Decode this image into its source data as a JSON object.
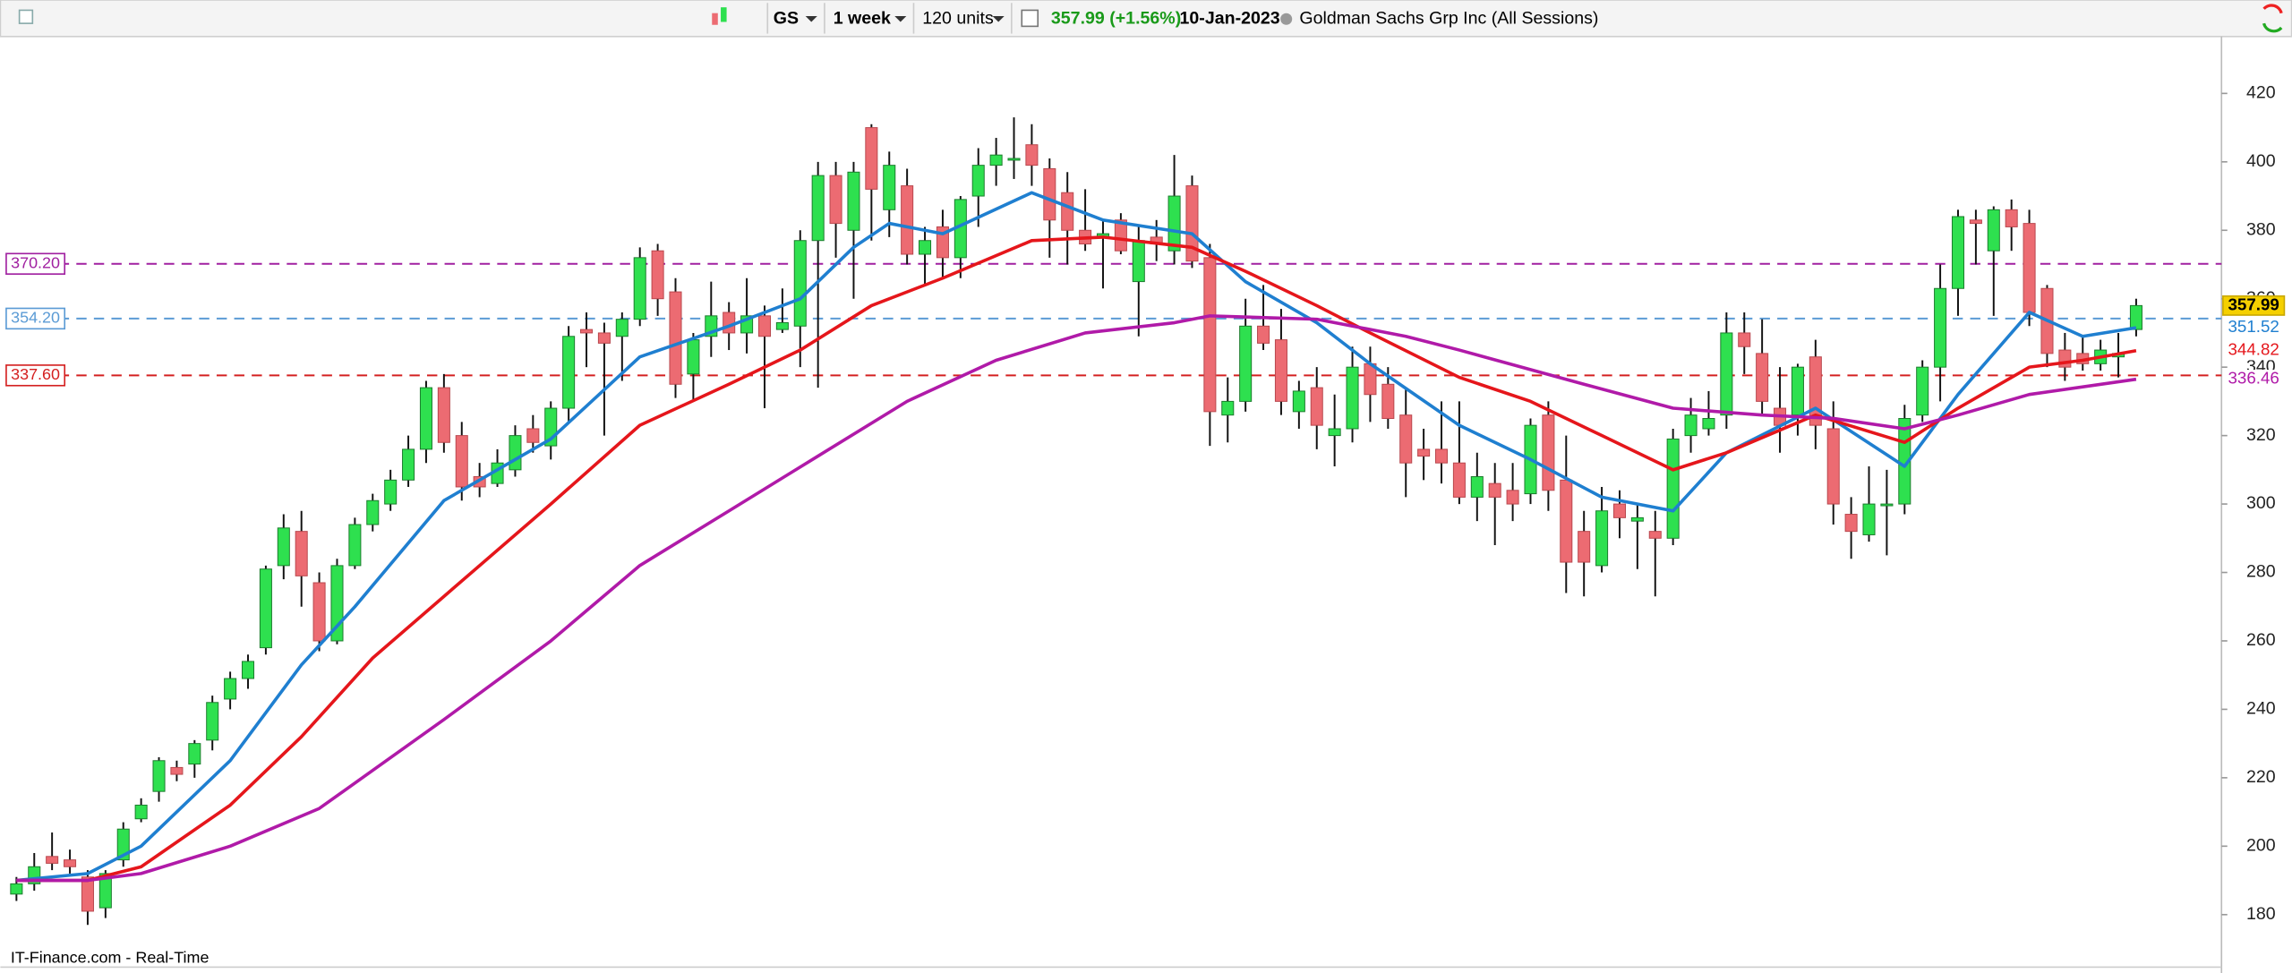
{
  "toolbar": {
    "symbol": "GS",
    "interval": "1 week",
    "units": "120 units",
    "last": "357.99 (+1.56%)",
    "date": "10-Jan-2023",
    "name": "Goldman Sachs Grp Inc (All Sessions)"
  },
  "footer": "IT-Finance.com - Real-Time",
  "chart_data": {
    "type": "candlestick",
    "up_color": "#2ee04f",
    "down_color": "#ec6b72",
    "ohlc": [
      [
        186,
        191,
        184,
        189
      ],
      [
        189,
        198,
        187,
        194
      ],
      [
        197,
        204,
        193,
        195
      ],
      [
        196,
        199,
        192,
        194
      ],
      [
        191,
        193,
        177,
        181
      ],
      [
        182,
        193,
        179,
        192
      ],
      [
        196,
        207,
        194,
        205
      ],
      [
        208,
        214,
        207,
        212
      ],
      [
        216,
        226,
        213,
        225
      ],
      [
        223,
        225,
        219,
        221
      ],
      [
        224,
        231,
        220,
        230
      ],
      [
        231,
        244,
        228,
        242
      ],
      [
        243,
        251,
        240,
        249
      ],
      [
        249,
        256,
        246,
        254
      ],
      [
        258,
        282,
        256,
        281
      ],
      [
        282,
        297,
        278,
        293
      ],
      [
        292,
        298,
        270,
        279
      ],
      [
        277,
        280,
        257,
        260
      ],
      [
        260,
        284,
        259,
        282
      ],
      [
        282,
        296,
        281,
        294
      ],
      [
        294,
        303,
        292,
        301
      ],
      [
        300,
        310,
        298,
        307
      ],
      [
        307,
        320,
        305,
        316
      ],
      [
        316,
        336,
        312,
        334
      ],
      [
        334,
        338,
        315,
        318
      ],
      [
        320,
        324,
        301,
        305
      ],
      [
        308,
        312,
        302,
        305
      ],
      [
        306,
        316,
        305,
        312
      ],
      [
        310,
        323,
        308,
        320
      ],
      [
        322,
        326,
        315,
        318
      ],
      [
        317,
        330,
        313,
        328
      ],
      [
        328,
        352,
        324,
        349
      ],
      [
        351,
        356,
        340,
        350
      ],
      [
        350,
        353,
        320,
        347
      ],
      [
        349,
        356,
        336,
        354
      ],
      [
        354,
        375,
        352,
        372
      ],
      [
        374,
        376,
        355,
        360
      ],
      [
        362,
        366,
        331,
        335
      ],
      [
        338,
        350,
        330,
        348
      ],
      [
        349,
        365,
        343,
        355
      ],
      [
        356,
        359,
        345,
        350
      ],
      [
        350,
        366,
        344,
        355
      ],
      [
        355,
        358,
        328,
        349
      ],
      [
        351,
        363,
        350,
        353
      ],
      [
        352,
        380,
        340,
        377
      ],
      [
        377,
        400,
        334,
        396
      ],
      [
        396,
        400,
        372,
        382
      ],
      [
        380,
        400,
        360,
        397
      ],
      [
        410,
        411,
        377,
        392
      ],
      [
        386,
        403,
        378,
        399
      ],
      [
        393,
        398,
        370,
        373
      ],
      [
        373,
        381,
        364,
        377
      ],
      [
        381,
        386,
        366,
        372
      ],
      [
        372,
        390,
        366,
        389
      ],
      [
        390,
        404,
        381,
        399
      ],
      [
        399,
        407,
        393,
        402
      ],
      [
        401,
        413,
        395,
        401
      ],
      [
        405,
        411,
        393,
        399
      ],
      [
        398,
        401,
        372,
        383
      ],
      [
        391,
        397,
        370,
        380
      ],
      [
        380,
        392,
        374,
        376
      ],
      [
        378,
        383,
        363,
        379
      ],
      [
        383,
        385,
        373,
        374
      ],
      [
        365,
        381,
        349,
        377
      ],
      [
        378,
        383,
        371,
        376
      ],
      [
        374,
        402,
        370,
        390
      ],
      [
        393,
        396,
        369,
        371
      ],
      [
        372,
        376,
        317,
        327
      ],
      [
        326,
        337,
        318,
        330
      ],
      [
        330,
        360,
        327,
        352
      ],
      [
        352,
        364,
        345,
        347
      ],
      [
        348,
        357,
        326,
        330
      ],
      [
        327,
        336,
        322,
        333
      ],
      [
        334,
        340,
        316,
        323
      ],
      [
        320,
        332,
        311,
        322
      ],
      [
        322,
        346,
        318,
        340
      ],
      [
        341,
        346,
        324,
        332
      ],
      [
        335,
        340,
        322,
        325
      ],
      [
        326,
        334,
        302,
        312
      ],
      [
        316,
        322,
        307,
        314
      ],
      [
        316,
        330,
        306,
        312
      ],
      [
        312,
        330,
        300,
        302
      ],
      [
        302,
        315,
        295,
        308
      ],
      [
        306,
        312,
        288,
        302
      ],
      [
        304,
        312,
        295,
        300
      ],
      [
        303,
        325,
        300,
        323
      ],
      [
        326,
        330,
        298,
        304
      ],
      [
        307,
        320,
        274,
        283
      ],
      [
        292,
        298,
        273,
        283
      ],
      [
        282,
        305,
        280,
        298
      ],
      [
        300,
        304,
        290,
        296
      ],
      [
        295,
        300,
        281,
        296
      ],
      [
        292,
        298,
        273,
        290
      ],
      [
        290,
        322,
        288,
        319
      ],
      [
        320,
        331,
        315,
        326
      ],
      [
        322,
        333,
        320,
        325
      ],
      [
        326,
        356,
        322,
        350
      ],
      [
        350,
        356,
        338,
        346
      ],
      [
        344,
        354,
        326,
        330
      ],
      [
        328,
        340,
        315,
        323
      ],
      [
        326,
        341,
        320,
        340
      ],
      [
        343,
        348,
        316,
        323
      ],
      [
        322,
        330,
        294,
        300
      ],
      [
        297,
        302,
        284,
        292
      ],
      [
        291,
        311,
        289,
        300
      ],
      [
        300,
        310,
        285,
        300
      ],
      [
        300,
        329,
        297,
        325
      ],
      [
        326,
        342,
        324,
        340
      ],
      [
        340,
        370,
        330,
        363
      ],
      [
        363,
        386,
        355,
        384
      ],
      [
        383,
        386,
        370,
        382
      ],
      [
        374,
        387,
        355,
        386
      ],
      [
        386,
        389,
        374,
        381
      ],
      [
        382,
        386,
        352,
        356
      ],
      [
        363,
        364,
        340,
        344
      ],
      [
        345,
        350,
        336,
        340
      ],
      [
        344,
        349,
        339,
        341
      ],
      [
        341,
        348,
        339,
        345
      ],
      [
        343,
        350,
        337,
        344
      ],
      [
        351,
        360,
        349,
        358
      ]
    ],
    "lines": [
      {
        "color": "#1f7fd0",
        "x": [
          0,
          4,
          7,
          12,
          16,
          19,
          24,
          30,
          35,
          40,
          44,
          47,
          49,
          52,
          57,
          61,
          66,
          69,
          73,
          76,
          81,
          85,
          89,
          93,
          96,
          101,
          106,
          109,
          113,
          116,
          119
        ],
        "values": [
          190,
          192,
          200,
          225,
          253,
          270,
          301,
          319,
          343,
          352,
          360,
          375,
          382,
          379,
          391,
          383,
          379,
          365,
          353,
          341,
          323,
          313,
          302,
          298,
          315,
          328,
          311,
          332,
          356,
          349,
          351.52
        ]
      },
      {
        "color": "#e5161b",
        "x": [
          0,
          4,
          7,
          12,
          16,
          20,
          24,
          30,
          35,
          40,
          44,
          48,
          52,
          57,
          61,
          66,
          69,
          73,
          76,
          81,
          85,
          89,
          93,
          96,
          101,
          106,
          109,
          113,
          116,
          119
        ],
        "values": [
          190,
          190,
          194,
          212,
          232,
          255,
          273,
          300,
          323,
          335,
          345,
          358,
          366,
          377,
          378,
          375,
          368,
          358,
          350,
          337,
          330,
          320,
          310,
          315,
          326,
          318,
          328,
          340,
          342,
          344.82
        ]
      },
      {
        "color": "#b01aa8",
        "x": [
          0,
          4,
          7,
          12,
          17,
          24,
          30,
          35,
          40,
          45,
          50,
          55,
          60,
          65,
          67,
          73,
          78,
          81,
          88,
          93,
          98,
          102,
          106,
          109,
          113,
          119
        ],
        "values": [
          190,
          190,
          192,
          200,
          211,
          237,
          260,
          282,
          298,
          314,
          330,
          342,
          350,
          353,
          355,
          354,
          349,
          345,
          335,
          328,
          326,
          325,
          322,
          326,
          332,
          336.46
        ]
      }
    ],
    "levels": [
      {
        "value": 370.2,
        "label": "370.20",
        "color": "#a020a0"
      },
      {
        "value": 354.2,
        "label": "354.20",
        "color": "#5b9bd5"
      },
      {
        "value": 337.6,
        "label": "337.60",
        "color": "#d42020"
      }
    ],
    "last_labels": [
      {
        "value": 357.99,
        "label": "357.99",
        "color": "#f5d000"
      },
      {
        "value": 351.52,
        "label": "351.52",
        "color": "#1f7fd0"
      },
      {
        "value": 344.82,
        "label": "344.82",
        "color": "#e5161b"
      },
      {
        "value": 336.46,
        "label": "336.46",
        "color": "#b01aa8"
      }
    ],
    "ylim": [
      165.5,
      436.2
    ],
    "yticks": [
      180,
      200,
      220,
      240,
      260,
      280,
      300,
      320,
      340,
      360,
      380,
      400,
      420
    ]
  }
}
